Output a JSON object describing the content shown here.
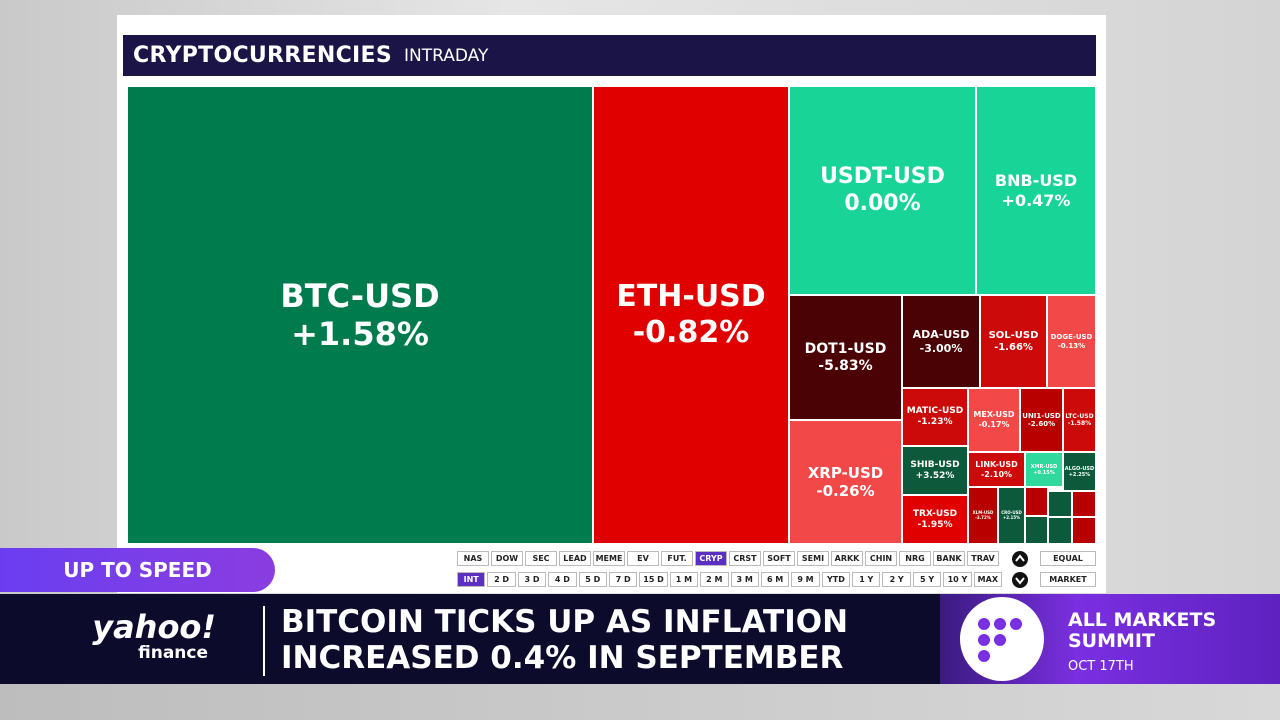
{
  "header": {
    "title": "CRYPTOCURRENCIES",
    "subtitle": "INTRADAY"
  },
  "tiles": [
    {
      "symbol": "BTC-USD",
      "change": "+1.58%"
    },
    {
      "symbol": "ETH-USD",
      "change": "-0.82%"
    },
    {
      "symbol": "USDT-USD",
      "change": "0.00%"
    },
    {
      "symbol": "BNB-USD",
      "change": "+0.47%"
    },
    {
      "symbol": "DOT1-USD",
      "change": "-5.83%"
    },
    {
      "symbol": "XRP-USD",
      "change": "-0.26%"
    },
    {
      "symbol": "ADA-USD",
      "change": "-3.00%"
    },
    {
      "symbol": "SOL-USD",
      "change": "-1.66%"
    },
    {
      "symbol": "DOGE-USD",
      "change": "-0.13%"
    },
    {
      "symbol": "MATIC-USD",
      "change": "-1.23%"
    },
    {
      "symbol": "MEX-USD",
      "change": "-0.17%"
    },
    {
      "symbol": "UNI1-USD",
      "change": "-2.60%"
    },
    {
      "symbol": "LTC-USD",
      "change": "-1.58%"
    },
    {
      "symbol": "SHIB-USD",
      "change": "+3.52%"
    },
    {
      "symbol": "LINK-USD",
      "change": "-2.10%"
    },
    {
      "symbol": "XMR-USD",
      "change": "+0.15%"
    },
    {
      "symbol": "ALGO-USD",
      "change": "+2.25%"
    },
    {
      "symbol": "TRX-USD",
      "change": "-1.95%"
    },
    {
      "symbol": "XLM-USD",
      "change": "-3.72%"
    },
    {
      "symbol": "CRO-USD",
      "change": "+2.15%"
    }
  ],
  "category_buttons": [
    "NAS",
    "DOW",
    "SEC",
    "LEAD",
    "MEME",
    "EV",
    "FUT.",
    "CRYP",
    "CRST",
    "SOFT",
    "SEMI",
    "ARKK",
    "CHIN",
    "NRG",
    "BANK",
    "TRAV"
  ],
  "range_buttons": [
    "INT",
    "2 D",
    "3 D",
    "4 D",
    "5 D",
    "7 D",
    "15 D",
    "1 M",
    "2 M",
    "3 M",
    "6 M",
    "9 M",
    "YTD",
    "1 Y",
    "2 Y",
    "5 Y",
    "10 Y",
    "MAX"
  ],
  "sort_buttons": [
    "EQUAL",
    "MARKET"
  ],
  "banner": {
    "tag": "UP TO SPEED",
    "headline_lines": [
      "BITCOIN TICKS UP AS INFLATION",
      "INCREASED 0.4% IN SEPTEMBER"
    ],
    "logo": {
      "brand": "yahoo!",
      "sub": "finance"
    },
    "promo": {
      "title_lines": [
        "ALL MARKETS",
        "SUMMIT"
      ],
      "date": "OCT 17TH"
    }
  }
}
